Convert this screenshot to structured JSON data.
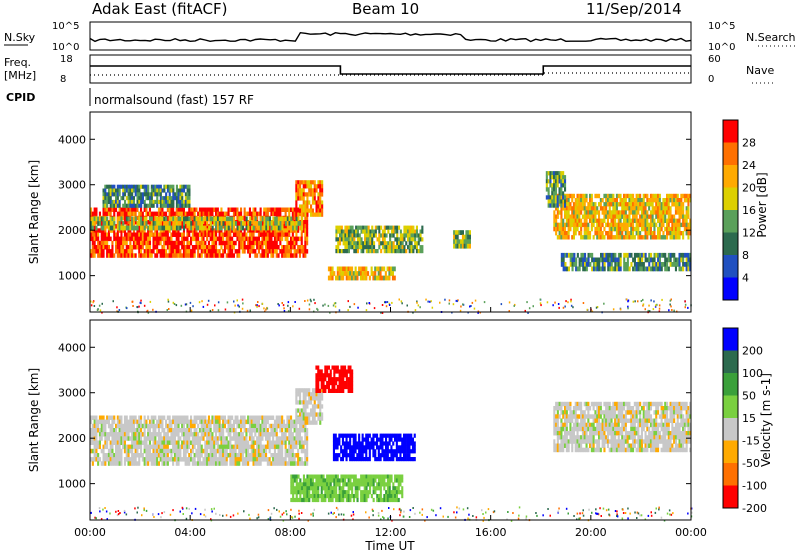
{
  "header": {
    "radar": "Adak East (fitACF)",
    "beam": "Beam 10",
    "date": "11/Sep/2014"
  },
  "status": {
    "nsky_label": "N.Sky",
    "nsky_ticks": [
      "10^5",
      "10^0"
    ],
    "nsearch_label": "N.Search",
    "nsearch_ticks": [
      "10^5",
      "10^0"
    ],
    "freq_label": "Freq.",
    "freq_unit": "[MHz]",
    "freq_ticks": [
      "18",
      "8"
    ],
    "nave_label": "Nave",
    "nave_ticks": [
      "60",
      "0"
    ],
    "cpid_label": "CPID",
    "cpid_value": "normalsound (fast) 157 RF"
  },
  "chart_data": [
    {
      "type": "heatmap",
      "name": "power",
      "ylabel": "Slant Range [km]",
      "ylim": [
        200,
        4600
      ],
      "yticks": [
        "1000",
        "2000",
        "3000",
        "4000"
      ],
      "xlim_hours": [
        0,
        24
      ],
      "colorbar": {
        "title": "Power [dB]",
        "ticks": [
          "28",
          "24",
          "20",
          "16",
          "12",
          "8",
          "4"
        ],
        "colors": [
          "#ff0000",
          "#ff7000",
          "#ffaa00",
          "#ddd000",
          "#5aa05a",
          "#2c6a4e",
          "#2050c0",
          "#0000ff"
        ]
      },
      "regions": [
        {
          "t0": 0,
          "t1": 8.7,
          "r0": 1400,
          "r1": 2500,
          "value": 28
        },
        {
          "t0": 0,
          "t1": 8.5,
          "r0": 2000,
          "r1": 2300,
          "value": 16
        },
        {
          "t0": 0.5,
          "t1": 4.0,
          "r0": 2500,
          "r1": 3000,
          "value": 10
        },
        {
          "t0": 8.2,
          "t1": 9.3,
          "r0": 2300,
          "r1": 3100,
          "value": 24
        },
        {
          "t0": 9.8,
          "t1": 13.3,
          "r0": 1500,
          "r1": 2100,
          "value": 14
        },
        {
          "t0": 9.5,
          "t1": 12.2,
          "r0": 900,
          "r1": 1200,
          "value": 20
        },
        {
          "t0": 14.5,
          "t1": 15.2,
          "r0": 1600,
          "r1": 2000,
          "value": 14
        },
        {
          "t0": 18.5,
          "t1": 24,
          "r0": 1800,
          "r1": 2800,
          "value": 20
        },
        {
          "t0": 18.8,
          "t1": 24,
          "r0": 1100,
          "r1": 1500,
          "value": 10
        },
        {
          "t0": 18.2,
          "t1": 19.0,
          "r0": 2500,
          "r1": 3300,
          "value": 12
        }
      ]
    },
    {
      "type": "heatmap",
      "name": "velocity",
      "ylabel": "Slant Range [km]",
      "ylim": [
        200,
        4600
      ],
      "yticks": [
        "1000",
        "2000",
        "3000",
        "4000"
      ],
      "xlim_hours": [
        0,
        24
      ],
      "xlabel": "Time UT",
      "xticks": [
        "00:00",
        "04:00",
        "08:00",
        "12:00",
        "16:00",
        "20:00",
        "00:00"
      ],
      "colorbar": {
        "title": "Velocity [m s-1]",
        "ticks": [
          "200",
          "100",
          "50",
          "15",
          "-15",
          "-50",
          "-100",
          "-200"
        ],
        "colors": [
          "#0000ff",
          "#2c6a4e",
          "#3aa03a",
          "#7ad040",
          "#c8c8c8",
          "#ffaa00",
          "#ff7000",
          "#ff0000"
        ]
      },
      "regions": [
        {
          "t0": 0,
          "t1": 8.7,
          "r0": 1400,
          "r1": 2500,
          "value": 0
        },
        {
          "t0": 8.2,
          "t1": 9.3,
          "r0": 2300,
          "r1": 3100,
          "value": 0
        },
        {
          "t0": 9.7,
          "t1": 13.0,
          "r0": 1500,
          "r1": 2100,
          "value": 250
        },
        {
          "t0": 8.0,
          "t1": 12.5,
          "r0": 600,
          "r1": 1200,
          "value": 40
        },
        {
          "t0": 18.5,
          "t1": 24,
          "r0": 1700,
          "r1": 2800,
          "value": 0
        },
        {
          "t0": 9.0,
          "t1": 10.5,
          "r0": 3000,
          "r1": 3600,
          "value": -200
        }
      ]
    }
  ]
}
